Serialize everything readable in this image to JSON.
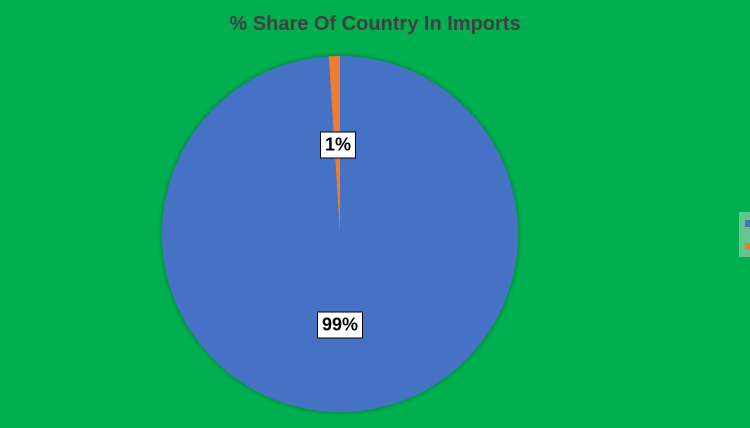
{
  "chart_data": {
    "type": "pie",
    "title": "% Share Of Country In Imports",
    "slices": [
      {
        "value": 99,
        "label": "99%",
        "color": "#4472c4"
      },
      {
        "value": 1,
        "label": "1%",
        "color": "#ed7d31"
      }
    ],
    "legend": "right",
    "background": "#00b050"
  }
}
